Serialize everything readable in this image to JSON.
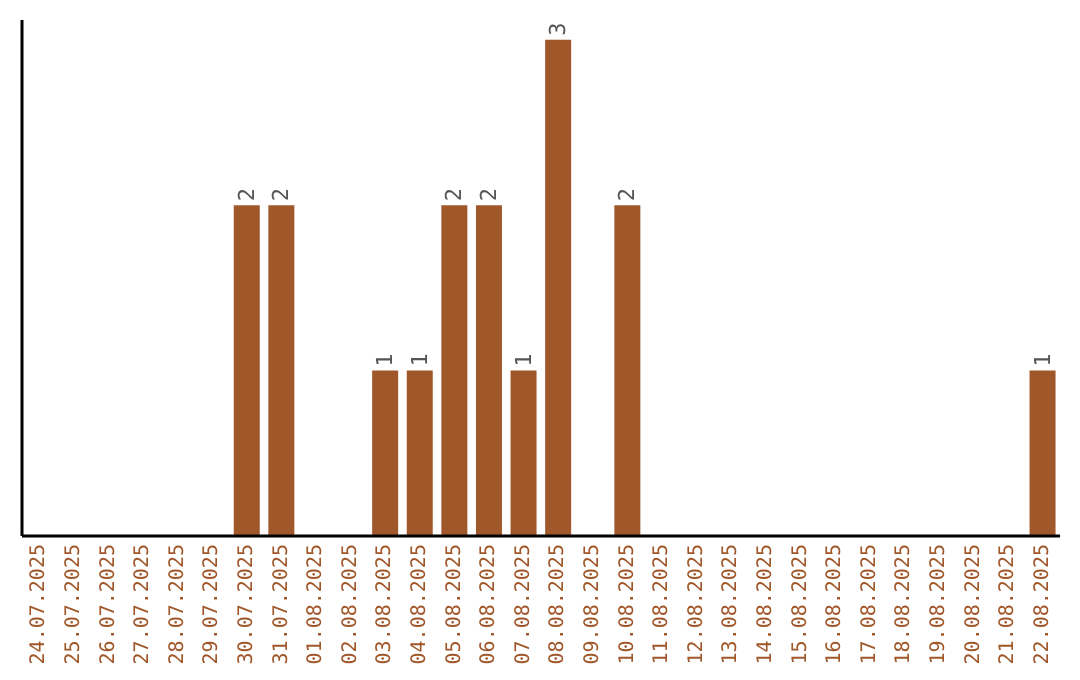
{
  "chart_data": {
    "type": "bar",
    "categories": [
      "24.07.2025",
      "25.07.2025",
      "26.07.2025",
      "27.07.2025",
      "28.07.2025",
      "29.07.2025",
      "30.07.2025",
      "31.07.2025",
      "01.08.2025",
      "02.08.2025",
      "03.08.2025",
      "04.08.2025",
      "05.08.2025",
      "06.08.2025",
      "07.08.2025",
      "08.08.2025",
      "09.08.2025",
      "10.08.2025",
      "11.08.2025",
      "12.08.2025",
      "13.08.2025",
      "14.08.2025",
      "15.08.2025",
      "16.08.2025",
      "17.08.2025",
      "18.08.2025",
      "19.08.2025",
      "20.08.2025",
      "21.08.2025",
      "22.08.2025"
    ],
    "values": [
      null,
      null,
      null,
      null,
      null,
      null,
      2,
      2,
      null,
      null,
      1,
      1,
      2,
      2,
      1,
      3,
      null,
      2,
      null,
      null,
      null,
      null,
      null,
      null,
      null,
      null,
      null,
      null,
      null,
      1
    ],
    "color": "#a0572a",
    "data_labels": true
  }
}
